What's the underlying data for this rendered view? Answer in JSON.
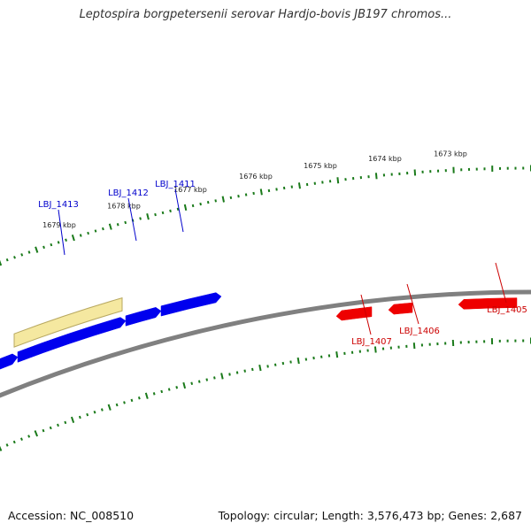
{
  "title": "Leptospira borgpetersenii serovar Hardjo-bovis JB197 chromos...",
  "footer": {
    "accession": "Accession: NC_008510",
    "summary": "Topology: circular; Length: 3,576,473 bp; Genes: 2,687"
  },
  "colors": {
    "forward_gene": "#0000ee",
    "reverse_gene": "#ee0000",
    "highlight": "#f5e8a0",
    "backbone": "#808080",
    "tick": "#1a7a1a",
    "forward_label": "#0000cc",
    "reverse_label": "#cc0000"
  },
  "kbp_labels": [
    "1679 kbp",
    "1678 kbp",
    "1677 kbp",
    "1676 kbp",
    "1675 kbp",
    "1674 kbp",
    "1673 kbp"
  ],
  "forward_genes": [
    {
      "label": "LBJ_1413"
    },
    {
      "label": "LBJ_1412"
    },
    {
      "label": "LBJ_1411"
    }
  ],
  "reverse_genes": [
    {
      "label": "LBJ_1407"
    },
    {
      "label": "LBJ_1406"
    },
    {
      "label": "LBJ_1405"
    }
  ]
}
